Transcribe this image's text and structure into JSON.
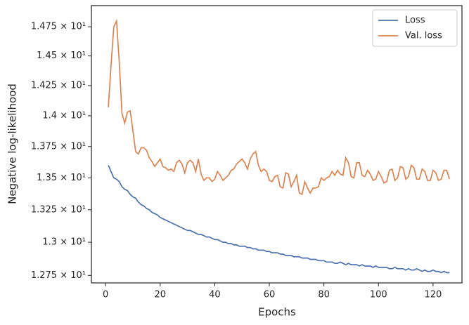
{
  "chart_data": {
    "type": "line",
    "x_label": "Epochs",
    "y_label": "Negative log-likelihood",
    "log_y": true,
    "legend": "upper right",
    "x": [
      1,
      2,
      3,
      4,
      5,
      6,
      7,
      8,
      9,
      10,
      11,
      12,
      13,
      14,
      15,
      16,
      17,
      18,
      19,
      20,
      21,
      22,
      23,
      24,
      25,
      26,
      27,
      28,
      29,
      30,
      31,
      32,
      33,
      34,
      35,
      36,
      37,
      38,
      39,
      40,
      41,
      42,
      43,
      44,
      45,
      46,
      47,
      48,
      49,
      50,
      51,
      52,
      53,
      54,
      55,
      56,
      57,
      58,
      59,
      60,
      61,
      62,
      63,
      64,
      65,
      66,
      67,
      68,
      69,
      70,
      71,
      72,
      73,
      74,
      75,
      76,
      77,
      78,
      79,
      80,
      81,
      82,
      83,
      84,
      85,
      86,
      87,
      88,
      89,
      90,
      91,
      92,
      93,
      94,
      95,
      96,
      97,
      98,
      99,
      100,
      101,
      102,
      103,
      104,
      105,
      106,
      107,
      108,
      109,
      110,
      111,
      112,
      113,
      114,
      115,
      116,
      117,
      118,
      119,
      120,
      121,
      122,
      123,
      124,
      125,
      126
    ],
    "series": [
      {
        "name": "Loss",
        "color": "#4c72b0",
        "values": [
          13.6,
          13.55,
          13.5,
          13.49,
          13.47,
          13.43,
          13.41,
          13.4,
          13.37,
          13.35,
          13.34,
          13.31,
          13.29,
          13.28,
          13.26,
          13.25,
          13.23,
          13.22,
          13.21,
          13.19,
          13.18,
          13.17,
          13.16,
          13.15,
          13.14,
          13.13,
          13.12,
          13.11,
          13.1,
          13.09,
          13.09,
          13.08,
          13.07,
          13.06,
          13.06,
          13.05,
          13.04,
          13.04,
          13.03,
          13.02,
          13.02,
          13.01,
          13.0,
          13.0,
          12.99,
          12.99,
          12.98,
          12.98,
          12.97,
          12.97,
          12.97,
          12.96,
          12.96,
          12.95,
          12.95,
          12.94,
          12.94,
          12.94,
          12.93,
          12.93,
          12.92,
          12.92,
          12.92,
          12.91,
          12.91,
          12.9,
          12.9,
          12.9,
          12.89,
          12.89,
          12.89,
          12.88,
          12.88,
          12.88,
          12.87,
          12.87,
          12.87,
          12.86,
          12.86,
          12.86,
          12.85,
          12.85,
          12.85,
          12.84,
          12.84,
          12.85,
          12.84,
          12.83,
          12.84,
          12.83,
          12.83,
          12.83,
          12.82,
          12.83,
          12.82,
          12.82,
          12.82,
          12.81,
          12.82,
          12.81,
          12.81,
          12.81,
          12.81,
          12.8,
          12.8,
          12.81,
          12.8,
          12.8,
          12.8,
          12.79,
          12.8,
          12.79,
          12.79,
          12.8,
          12.79,
          12.78,
          12.79,
          12.78,
          12.78,
          12.79,
          12.78,
          12.78,
          12.77,
          12.78,
          12.77,
          12.77
        ]
      },
      {
        "name": "Val. loss",
        "color": "#dd8452",
        "values": [
          14.07,
          14.42,
          14.75,
          14.8,
          14.45,
          14.02,
          13.94,
          14.03,
          14.04,
          13.88,
          13.71,
          13.69,
          13.74,
          13.74,
          13.72,
          13.66,
          13.63,
          13.59,
          13.62,
          13.65,
          13.59,
          13.58,
          13.56,
          13.57,
          13.55,
          13.62,
          13.64,
          13.61,
          13.54,
          13.62,
          13.64,
          13.62,
          13.55,
          13.65,
          13.53,
          13.48,
          13.5,
          13.5,
          13.47,
          13.49,
          13.55,
          13.52,
          13.48,
          13.5,
          13.52,
          13.56,
          13.57,
          13.61,
          13.63,
          13.65,
          13.62,
          13.57,
          13.65,
          13.69,
          13.71,
          13.6,
          13.55,
          13.57,
          13.55,
          13.48,
          13.47,
          13.51,
          13.52,
          13.43,
          13.42,
          13.54,
          13.53,
          13.43,
          13.47,
          13.52,
          13.38,
          13.37,
          13.47,
          13.42,
          13.38,
          13.42,
          13.42,
          13.43,
          13.5,
          13.48,
          13.5,
          13.51,
          13.55,
          13.52,
          13.56,
          13.53,
          13.52,
          13.66,
          13.62,
          13.51,
          13.5,
          13.62,
          13.62,
          13.52,
          13.51,
          13.56,
          13.53,
          13.48,
          13.49,
          13.55,
          13.51,
          13.46,
          13.47,
          13.56,
          13.57,
          13.48,
          13.5,
          13.59,
          13.58,
          13.49,
          13.51,
          13.6,
          13.58,
          13.49,
          13.49,
          13.57,
          13.55,
          13.48,
          13.48,
          13.56,
          13.54,
          13.48,
          13.49,
          13.56,
          13.56,
          13.49
        ]
      }
    ],
    "xlim": [
      -5.2,
      130.6
    ],
    "xticks": [
      0,
      20,
      40,
      60,
      80,
      100,
      120
    ],
    "ylim": [
      12.694,
      14.934
    ],
    "yticks": [
      {
        "value": 12.75,
        "label": "1.275 × 10¹"
      },
      {
        "value": 13,
        "label": "1.3 × 10¹"
      },
      {
        "value": 13.25,
        "label": "1.325 × 10¹"
      },
      {
        "value": 13.5,
        "label": "1.35 × 10¹"
      },
      {
        "value": 13.75,
        "label": "1.375 × 10¹"
      },
      {
        "value": 14,
        "label": "1.4 × 10¹"
      },
      {
        "value": 14.25,
        "label": "1.425 × 10¹"
      },
      {
        "value": 14.5,
        "label": "1.45 × 10¹"
      },
      {
        "value": 14.75,
        "label": "1.475 × 10¹"
      }
    ]
  }
}
